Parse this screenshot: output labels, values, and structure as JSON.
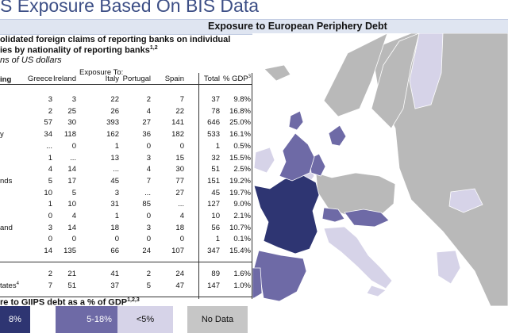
{
  "title": "S Exposure Based On BIS Data",
  "banner": "Exposure to European Periphery Debt",
  "description": {
    "line1": "olidated foreign claims of reporting banks on individual",
    "line2": "ies by nationality of reporting banks",
    "line2_sup": "1,2",
    "line3": "ns of US dollars"
  },
  "table": {
    "header_left": "ing",
    "group_header": "Exposure To:",
    "columns": [
      "Greece",
      "Ireland",
      "Italy",
      "Portugal",
      "Spain",
      "Total",
      "% GDP"
    ],
    "gdp_sup": "3",
    "rows": [
      {
        "label": "",
        "values": [
          "3",
          "3",
          "22",
          "2",
          "7",
          "37",
          "9.8%"
        ]
      },
      {
        "label": "",
        "values": [
          "2",
          "25",
          "26",
          "4",
          "22",
          "78",
          "16.8%"
        ]
      },
      {
        "label": "",
        "values": [
          "57",
          "30",
          "393",
          "27",
          "141",
          "646",
          "25.0%"
        ]
      },
      {
        "label": "y",
        "values": [
          "34",
          "118",
          "162",
          "36",
          "182",
          "533",
          "16.1%"
        ]
      },
      {
        "label": "",
        "values": [
          "...",
          "0",
          "1",
          "0",
          "0",
          "1",
          "0.5%"
        ]
      },
      {
        "label": "",
        "values": [
          "1",
          "...",
          "13",
          "3",
          "15",
          "32",
          "15.5%"
        ]
      },
      {
        "label": "",
        "values": [
          "4",
          "14",
          "...",
          "4",
          "30",
          "51",
          "2.5%"
        ]
      },
      {
        "label": "nds",
        "values": [
          "5",
          "17",
          "45",
          "7",
          "77",
          "151",
          "19.2%"
        ]
      },
      {
        "label": "",
        "values": [
          "10",
          "5",
          "3",
          "...",
          "27",
          "45",
          "19.7%"
        ]
      },
      {
        "label": "",
        "values": [
          "1",
          "10",
          "31",
          "85",
          "...",
          "127",
          "9.0%"
        ]
      },
      {
        "label": "",
        "values": [
          "0",
          "4",
          "1",
          "0",
          "4",
          "10",
          "2.1%"
        ]
      },
      {
        "label": "and",
        "values": [
          "3",
          "14",
          "18",
          "3",
          "18",
          "56",
          "10.7%"
        ]
      },
      {
        "label": "",
        "values": [
          "0",
          "0",
          "0",
          "0",
          "0",
          "1",
          "0.1%"
        ]
      },
      {
        "label": "",
        "values": [
          "14",
          "135",
          "66",
          "24",
          "107",
          "347",
          "15.4%"
        ]
      }
    ],
    "bottom_rows": [
      {
        "label": "",
        "values": [
          "2",
          "21",
          "41",
          "2",
          "24",
          "89",
          "1.6%"
        ]
      },
      {
        "label": "tates",
        "label_sup": "4",
        "values": [
          "7",
          "51",
          "37",
          "5",
          "47",
          "147",
          "1.0%"
        ]
      }
    ]
  },
  "footnote": "re to GIIPS debt as a % of GDP",
  "footnote_sup": "1,2,3",
  "legend": [
    {
      "label": "8%",
      "color": "#2e3572",
      "text_color": "#ffffff"
    },
    {
      "label": "5-18%",
      "color": "#6e6aa6",
      "text_color": "#ffffff"
    },
    {
      "label": "<5%",
      "color": "#d6d3e8",
      "text_color": "#111111"
    },
    {
      "label": "No Data",
      "color": "#c6c6c6",
      "text_color": "#111111"
    }
  ],
  "map_colors": {
    "dark": "#2e3572",
    "mid": "#6e6aa6",
    "light": "#d6d3e8",
    "nodata": "#b9b9b9",
    "sea": "#ffffff"
  }
}
